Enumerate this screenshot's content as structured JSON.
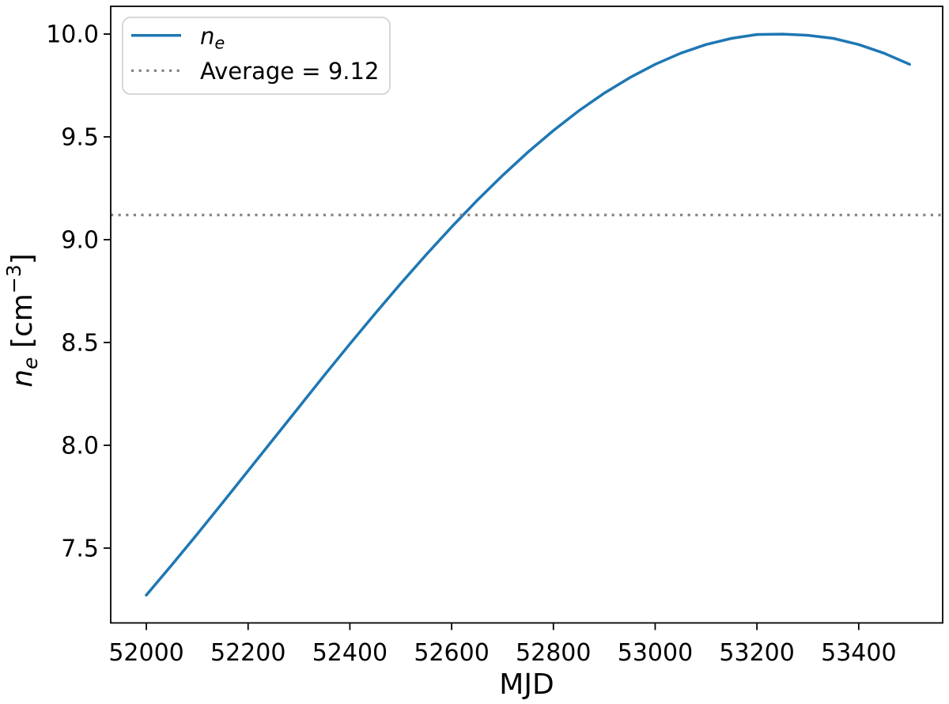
{
  "figure": {
    "background": "#ffffff",
    "frame_color": "#000000"
  },
  "axis_labels": {
    "xlabel": "MJD",
    "ylabel_var": "n",
    "ylabel_var_sub": "e",
    "ylabel_mid": " [cm",
    "ylabel_sup": "−3",
    "ylabel_end": "]"
  },
  "legend": {
    "entries": [
      {
        "label_var": "n",
        "label_sub": "e",
        "color": "#1f77b4",
        "linestyle": "solid"
      },
      {
        "label": "Average = 9.12",
        "color": "#808080",
        "linestyle": "dotted"
      }
    ]
  },
  "chart_data": {
    "type": "line",
    "title": "",
    "xlabel": "MJD",
    "ylabel": "n_e [cm^-3]",
    "xlim": [
      51930,
      53565
    ],
    "ylim": [
      7.136,
      10.135
    ],
    "xticks": [
      52000,
      52200,
      52400,
      52600,
      52800,
      53000,
      53200,
      53400
    ],
    "xtick_labels": [
      "52000",
      "52200",
      "52400",
      "52600",
      "52800",
      "53000",
      "53200",
      "53400"
    ],
    "yticks": [
      7.5,
      8.0,
      8.5,
      9.0,
      9.5,
      10.0
    ],
    "ytick_labels": [
      "7.5",
      "8.0",
      "8.5",
      "9.0",
      "9.5",
      "10.0"
    ],
    "grid": false,
    "legend_position": "upper-left",
    "series": [
      {
        "name": "n_e",
        "color": "#1f77b4",
        "linestyle": "solid",
        "linewidth": 3.5,
        "x": [
          52000,
          52050,
          52100,
          52150,
          52200,
          52250,
          52300,
          52350,
          52400,
          52450,
          52500,
          52550,
          52600,
          52650,
          52700,
          52750,
          52800,
          52850,
          52900,
          52950,
          53000,
          53050,
          53100,
          53150,
          53200,
          53250,
          53300,
          53350,
          53400,
          53450,
          53500
        ],
        "y": [
          7.271,
          7.418,
          7.568,
          7.721,
          7.876,
          8.031,
          8.186,
          8.341,
          8.493,
          8.642,
          8.787,
          8.927,
          9.062,
          9.191,
          9.312,
          9.426,
          9.531,
          9.627,
          9.713,
          9.788,
          9.853,
          9.907,
          9.949,
          9.979,
          9.998,
          10.0,
          9.994,
          9.979,
          9.949,
          9.907,
          9.853
        ]
      }
    ],
    "reference_lines": [
      {
        "label": "Average = 9.12",
        "value": 9.12,
        "orientation": "horizontal",
        "color": "#808080",
        "linestyle": "dotted",
        "linewidth": 3.2
      }
    ]
  }
}
